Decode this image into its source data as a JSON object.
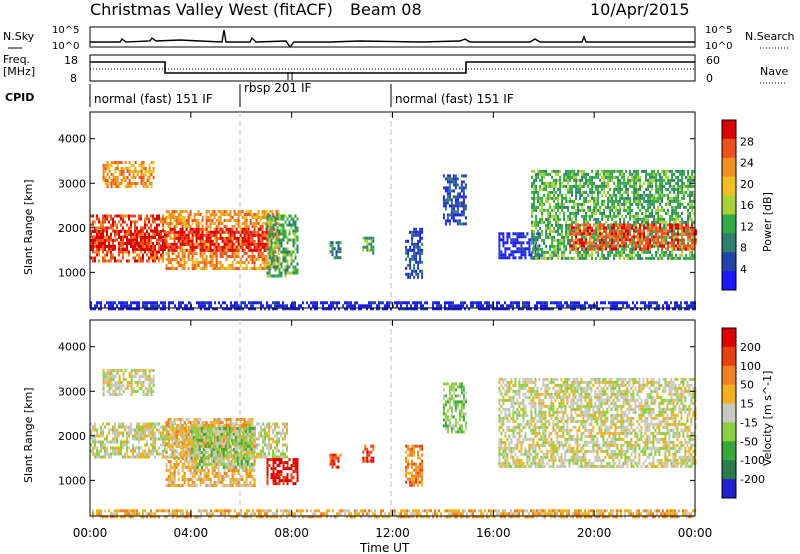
{
  "header": {
    "title": "Christmas Valley West (fitACF)",
    "beam": "Beam 08",
    "date": "10/Apr/2015"
  },
  "noise_panel": {
    "left_label": "N.Sky",
    "right_label": "N.Search",
    "left_ticks": [
      "10^5",
      "10^0"
    ],
    "right_ticks": [
      "10^5",
      "10^0"
    ]
  },
  "freq_panel": {
    "left_label_1": "Freq.",
    "left_label_2": "[MHz]",
    "right_label": "Nave",
    "left_ticks": [
      "18",
      "8"
    ],
    "right_ticks": [
      "60",
      "0"
    ]
  },
  "cpid": {
    "label": "CPID",
    "segments": [
      {
        "text": "normal (fast) 151 IF",
        "start": 0,
        "end": 6
      },
      {
        "text": "rbsp 201 IF",
        "start": 6,
        "end": 12
      },
      {
        "text": "normal (fast) 151 IF",
        "start": 12,
        "end": 24
      }
    ]
  },
  "x_axis": {
    "label": "Time UT",
    "tick_labels": [
      "00:00",
      "04:00",
      "08:00",
      "12:00",
      "16:00",
      "20:00",
      "00:00"
    ],
    "range_hours": [
      0,
      24
    ]
  },
  "colors": {
    "power": [
      "#1a1aff",
      "#2244aa",
      "#2f7f6f",
      "#33aa44",
      "#a8d23a",
      "#f0c020",
      "#f09020",
      "#ee5020",
      "#dd0000"
    ],
    "velocity": [
      "#2020cc",
      "#2a7a4a",
      "#39a83a",
      "#88d040",
      "#c8c8c0",
      "#f0b020",
      "#f08020",
      "#e84010",
      "#e00000"
    ]
  },
  "chart_data": [
    {
      "type": "heatmap",
      "name": "power",
      "ylabel": "Slant Range [km]",
      "ylim": [
        200,
        4600
      ],
      "yticks": [
        1000,
        2000,
        3000,
        4000
      ],
      "xlim": [
        0,
        24
      ],
      "colorbar": {
        "label": "Power [dB]",
        "ticks": [
          "28",
          "24",
          "20",
          "16",
          "12",
          "8",
          "4"
        ]
      },
      "regions": [
        {
          "t0": 0.0,
          "t1": 3.0,
          "r0": 1250,
          "r1": 2300,
          "level": 7
        },
        {
          "t0": 0.0,
          "t1": 3.0,
          "r0": 1500,
          "r1": 1950,
          "level": 8
        },
        {
          "t0": 0.5,
          "t1": 2.5,
          "r0": 2900,
          "r1": 3500,
          "level": 6
        },
        {
          "t0": 3.0,
          "t1": 7.5,
          "r0": 1100,
          "r1": 2400,
          "level": 6
        },
        {
          "t0": 3.0,
          "t1": 7.0,
          "r0": 1500,
          "r1": 2000,
          "level": 8
        },
        {
          "t0": 7.0,
          "t1": 8.2,
          "r0": 900,
          "r1": 2300,
          "level": 3
        },
        {
          "t0": 9.5,
          "t1": 9.9,
          "r0": 1300,
          "r1": 1700,
          "level": 2
        },
        {
          "t0": 10.8,
          "t1": 11.2,
          "r0": 1400,
          "r1": 1800,
          "level": 3
        },
        {
          "t0": 12.5,
          "t1": 13.2,
          "r0": 900,
          "r1": 2000,
          "level": 1
        },
        {
          "t0": 14.0,
          "t1": 14.9,
          "r0": 2100,
          "r1": 3200,
          "level": 1
        },
        {
          "t0": 16.2,
          "t1": 17.8,
          "r0": 1300,
          "r1": 1900,
          "level": 0
        },
        {
          "t0": 17.5,
          "t1": 24.0,
          "r0": 1300,
          "r1": 3300,
          "level": 3
        },
        {
          "t0": 19.0,
          "t1": 24.0,
          "r0": 1500,
          "r1": 2100,
          "level": 7
        },
        {
          "t0": 0.0,
          "t1": 24.0,
          "r0": 200,
          "r1": 350,
          "level": 0
        }
      ]
    },
    {
      "type": "heatmap",
      "name": "velocity",
      "ylabel": "Slant Range [km]",
      "ylim": [
        200,
        4600
      ],
      "yticks": [
        1000,
        2000,
        3000,
        4000
      ],
      "xlim": [
        0,
        24
      ],
      "colorbar": {
        "label": "Velocity [m s^-1]",
        "ticks": [
          "200",
          "100",
          "50",
          "15",
          "-15",
          "-50",
          "-100",
          "-200"
        ]
      },
      "regions": [
        {
          "t0": 0.0,
          "t1": 7.8,
          "r0": 1500,
          "r1": 2300,
          "level": 4
        },
        {
          "t0": 0.5,
          "t1": 2.5,
          "r0": 2900,
          "r1": 3500,
          "level": 4
        },
        {
          "t0": 3.0,
          "t1": 6.5,
          "r0": 900,
          "r1": 2400,
          "level": 5
        },
        {
          "t0": 4.0,
          "t1": 6.5,
          "r0": 1300,
          "r1": 2200,
          "level": 3
        },
        {
          "t0": 7.0,
          "t1": 8.2,
          "r0": 900,
          "r1": 1500,
          "level": 8
        },
        {
          "t0": 9.5,
          "t1": 9.9,
          "r0": 1300,
          "r1": 1600,
          "level": 7
        },
        {
          "t0": 10.8,
          "t1": 11.2,
          "r0": 1400,
          "r1": 1800,
          "level": 7
        },
        {
          "t0": 12.5,
          "t1": 13.2,
          "r0": 900,
          "r1": 1800,
          "level": 6
        },
        {
          "t0": 14.0,
          "t1": 14.9,
          "r0": 2100,
          "r1": 3200,
          "level": 3
        },
        {
          "t0": 16.2,
          "t1": 24.0,
          "r0": 1300,
          "r1": 3300,
          "level": 4
        },
        {
          "t0": 0.0,
          "t1": 24.0,
          "r0": 200,
          "r1": 350,
          "level": 5
        }
      ]
    }
  ]
}
